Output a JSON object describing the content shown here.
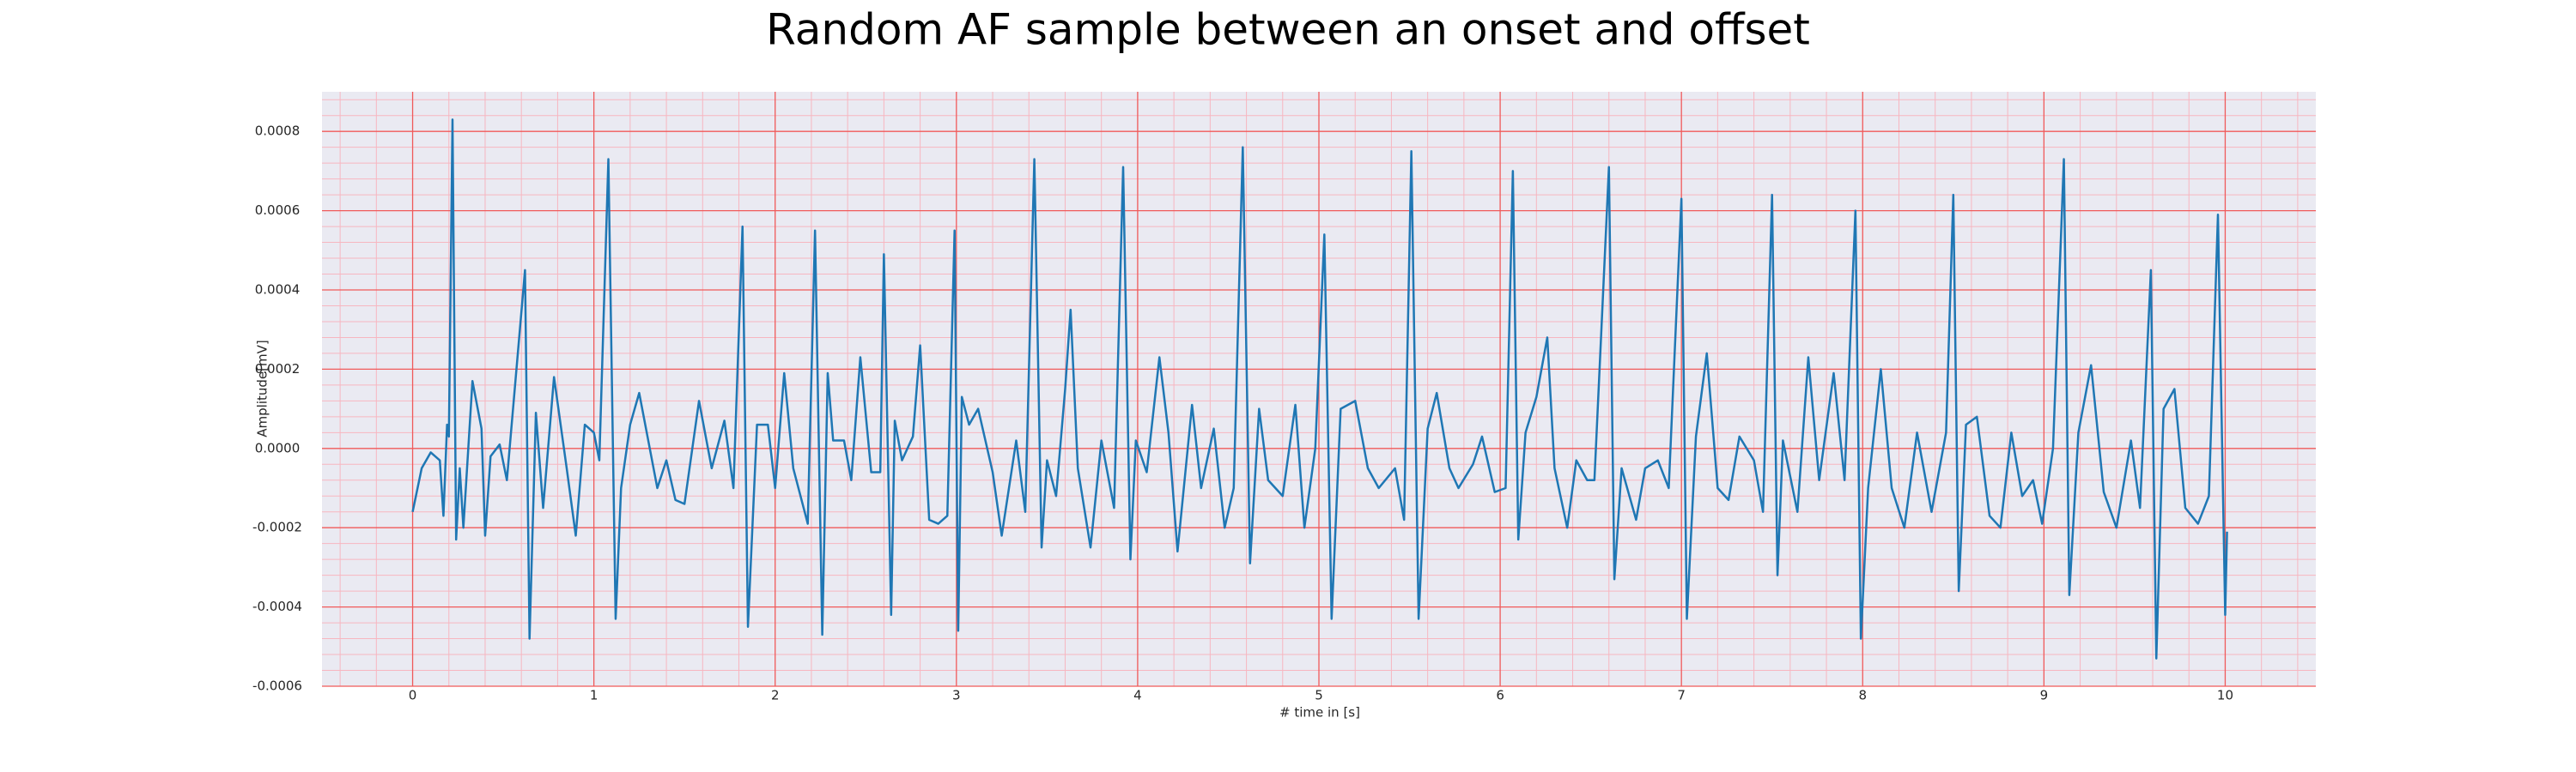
{
  "chart_data": {
    "type": "line",
    "title": "Random AF sample between an onset and offset",
    "xlabel": "# time in [s]",
    "ylabel": "Amplitude[mV]",
    "color": "#1f77b4",
    "grid": true,
    "minor_grid": true,
    "xlim": [
      -0.5,
      10.5
    ],
    "ylim": [
      -0.0006,
      0.0009
    ],
    "xticks": [
      0,
      1,
      2,
      3,
      4,
      5,
      6,
      7,
      8,
      9,
      10
    ],
    "yticks": [
      -0.0006,
      -0.0004,
      -0.0002,
      {
        "value": 0,
        "label": "0.0000"
      },
      0.0002,
      0.0004,
      0.0006,
      0.0008
    ],
    "x": [
      0,
      0.05,
      0.1,
      0.15,
      0.17,
      0.19,
      0.2,
      0.22,
      0.24,
      0.26,
      0.28,
      0.33,
      0.38,
      0.4,
      0.43,
      0.48,
      0.52,
      0.62,
      0.645,
      0.68,
      0.72,
      0.78,
      0.85,
      0.9,
      0.95,
      1.0,
      1.03,
      1.08,
      1.12,
      1.15,
      1.2,
      1.25,
      1.3,
      1.35,
      1.4,
      1.45,
      1.5,
      1.58,
      1.65,
      1.72,
      1.77,
      1.82,
      1.85,
      1.9,
      1.96,
      2.0,
      2.05,
      2.1,
      2.18,
      2.22,
      2.26,
      2.29,
      2.32,
      2.38,
      2.42,
      2.47,
      2.53,
      2.58,
      2.6,
      2.64,
      2.66,
      2.7,
      2.76,
      2.8,
      2.85,
      2.9,
      2.95,
      2.99,
      3.01,
      3.03,
      3.07,
      3.12,
      3.2,
      3.25,
      3.33,
      3.38,
      3.43,
      3.47,
      3.5,
      3.55,
      3.6,
      3.63,
      3.67,
      3.74,
      3.8,
      3.87,
      3.92,
      3.96,
      3.99,
      4.05,
      4.12,
      4.17,
      4.22,
      4.3,
      4.35,
      4.42,
      4.48,
      4.53,
      4.58,
      4.62,
      4.67,
      4.72,
      4.8,
      4.87,
      4.92,
      4.98,
      5.03,
      5.07,
      5.12,
      5.2,
      5.27,
      5.33,
      5.42,
      5.47,
      5.51,
      5.55,
      5.6,
      5.65,
      5.72,
      5.77,
      5.85,
      5.9,
      5.97,
      6.03,
      6.07,
      6.1,
      6.14,
      6.2,
      6.26,
      6.3,
      6.37,
      6.42,
      6.48,
      6.52,
      6.6,
      6.63,
      6.67,
      6.75,
      6.8,
      6.87,
      6.93,
      7.0,
      7.03,
      7.08,
      7.14,
      7.2,
      7.26,
      7.32,
      7.4,
      7.45,
      7.5,
      7.53,
      7.56,
      7.64,
      7.7,
      7.76,
      7.84,
      7.9,
      7.96,
      7.99,
      8.03,
      8.1,
      8.16,
      8.23,
      8.3,
      8.38,
      8.46,
      8.5,
      8.53,
      8.57,
      8.63,
      8.7,
      8.76,
      8.82,
      8.88,
      8.94,
      8.99,
      9.05,
      9.11,
      9.14,
      9.19,
      9.26,
      9.33,
      9.4,
      9.48,
      9.53,
      9.59,
      9.62,
      9.66,
      9.72,
      9.78,
      9.85,
      9.91,
      9.96,
      10.0,
      10.01
    ],
    "values": [
      -0.00016,
      -5e-05,
      -1e-05,
      -3e-05,
      -0.00017,
      6e-05,
      3e-05,
      0.00083,
      -0.00023,
      -5e-05,
      -0.0002,
      0.00017,
      5e-05,
      -0.00022,
      -2e-05,
      1e-05,
      -8e-05,
      0.00045,
      -0.00048,
      9e-05,
      -0.00015,
      0.00018,
      -5e-05,
      -0.00022,
      6e-05,
      4e-05,
      -3e-05,
      0.00073,
      -0.00043,
      -0.0001,
      6e-05,
      0.00014,
      2e-05,
      -0.0001,
      -3e-05,
      -0.00013,
      -0.00014,
      0.00012,
      -5e-05,
      7e-05,
      -0.0001,
      0.00056,
      -0.00045,
      6e-05,
      6e-05,
      -0.0001,
      0.00019,
      -5e-05,
      -0.00019,
      0.00055,
      -0.00047,
      0.00019,
      2e-05,
      2e-05,
      -8e-05,
      0.00023,
      -6e-05,
      -6e-05,
      0.00049,
      -0.00042,
      7e-05,
      -3e-05,
      3e-05,
      0.00026,
      -0.00018,
      -0.00019,
      -0.00017,
      0.00055,
      -0.00046,
      0.00013,
      6e-05,
      0.0001,
      -6e-05,
      -0.00022,
      2e-05,
      -0.00016,
      0.00073,
      -0.00025,
      -3e-05,
      -0.00012,
      0.00015,
      0.00035,
      -5e-05,
      -0.00025,
      2e-05,
      -0.00015,
      0.00071,
      -0.00028,
      2e-05,
      -6e-05,
      0.00023,
      4e-05,
      -0.00026,
      0.00011,
      -0.0001,
      5e-05,
      -0.0002,
      -0.0001,
      0.00076,
      -0.00029,
      0.0001,
      -8e-05,
      -0.00012,
      0.00011,
      -0.0002,
      0,
      0.00054,
      -0.00043,
      0.0001,
      0.00012,
      -5e-05,
      -0.0001,
      -5e-05,
      -0.00018,
      0.00075,
      -0.00043,
      5e-05,
      0.00014,
      -5e-05,
      -0.0001,
      -4e-05,
      3e-05,
      -0.00011,
      -0.0001,
      0.0007,
      -0.00023,
      4e-05,
      0.00013,
      0.00028,
      -5e-05,
      -0.0002,
      -3e-05,
      -8e-05,
      -8e-05,
      0.00071,
      -0.00033,
      -5e-05,
      -0.00018,
      -5e-05,
      -3e-05,
      -0.0001,
      0.00063,
      -0.00043,
      3e-05,
      0.00024,
      -0.0001,
      -0.00013,
      3e-05,
      -3e-05,
      -0.00016,
      0.00064,
      -0.00032,
      2e-05,
      -0.00016,
      0.00023,
      -8e-05,
      0.00019,
      -8e-05,
      0.0006,
      -0.00048,
      -0.0001,
      0.0002,
      -0.0001,
      -0.0002,
      4e-05,
      -0.00016,
      4e-05,
      0.00064,
      -0.00036,
      6e-05,
      8e-05,
      -0.00017,
      -0.0002,
      4e-05,
      -0.00012,
      -8e-05,
      -0.00019,
      0,
      0.00073,
      -0.00037,
      4e-05,
      0.00021,
      -0.00011,
      -0.0002,
      2e-05,
      -0.00015,
      0.00045,
      -0.00053,
      0.0001,
      0.00015,
      -0.00015,
      -0.00019,
      -0.00012,
      0.00059,
      -0.00042,
      -0.00021
    ]
  }
}
